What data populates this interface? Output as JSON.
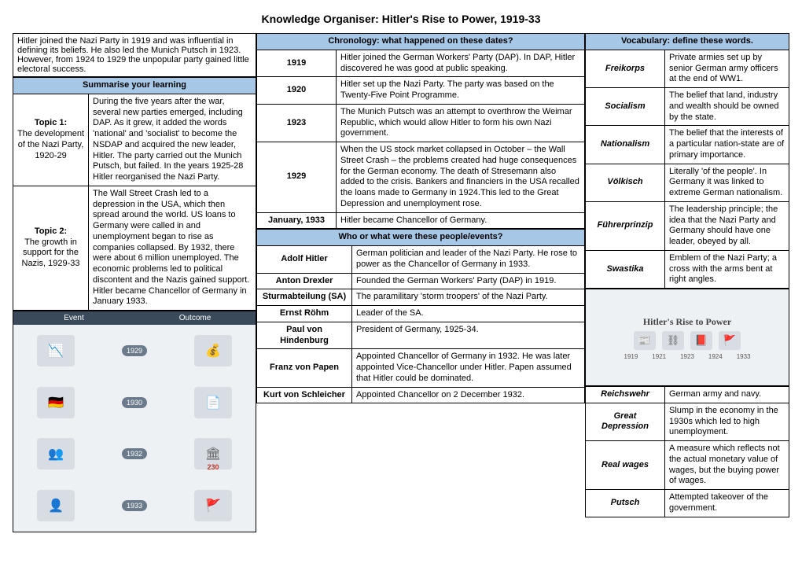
{
  "title": "Knowledge Organiser: Hitler's Rise to Power, 1919-33",
  "intro": "Hitler joined the Nazi Party in 1919 and was influential in defining its beliefs. He also led the Munich Putsch in 1923. However, from 1924 to 1929 the unpopular party gained little electoral success.",
  "summarise": {
    "header": "Summarise your learning",
    "topics": [
      {
        "label": "Topic 1:",
        "name": "The development of the Nazi Party, 1920-29",
        "text": "During the five years after the war, several new parties emerged, including DAP. As it grew, it added the words 'national' and 'socialist' to become the NSDAP and acquired the new leader, Hitler. The party carried out the Munich Putsch, but failed. In the years 1925-28 Hitler reorganised the Nazi Party."
      },
      {
        "label": "Topic 2:",
        "name": "The growth in support for the Nazis, 1929-33",
        "text": "The Wall Street Crash led to a depression in the USA, which then spread around the world. US loans to Germany were called in and unemployment began to rise as companies collapsed. By 1932, there were about 6 million unemployed. The economic problems led to political discontent and the Nazis gained support. Hitler became Chancellor of Germany in January 1933."
      }
    ]
  },
  "chronology": {
    "header": "Chronology: what happened on these dates?",
    "rows": [
      {
        "year": "1919",
        "text": "Hitler joined the German Workers' Party (DAP). In DAP, Hitler discovered he was good at public speaking."
      },
      {
        "year": "1920",
        "text": "Hitler set up the Nazi Party. The party was based on the Twenty-Five Point Programme."
      },
      {
        "year": "1923",
        "text": "The Munich Putsch was an attempt to overthrow the Weimar Republic, which would allow Hitler to form his own Nazi government."
      },
      {
        "year": "1929",
        "text": "When the US stock market collapsed in October – the Wall Street Crash – the problems created had huge consequences for the German economy. The death of Stresemann also added to the crisis. Bankers and financiers in the USA recalled the loans made to Germany in 1924.This led to the Great Depression and unemployment rose."
      },
      {
        "year": "January, 1933",
        "text": "Hitler became Chancellor of Germany."
      }
    ]
  },
  "people": {
    "header": "Who or what were these people/events?",
    "rows": [
      {
        "name": "Adolf Hitler",
        "text": "German politician and leader of the Nazi Party. He rose to power as the Chancellor of Germany in 1933."
      },
      {
        "name": "Anton Drexler",
        "text": "Founded the German Workers' Party (DAP) in 1919."
      },
      {
        "name": "Sturmabteilung (SA)",
        "text": "The paramilitary 'storm troopers' of the Nazi Party."
      },
      {
        "name": "Ernst Röhm",
        "text": "Leader of the SA."
      },
      {
        "name": "Paul von Hindenburg",
        "text": "President of Germany, 1925-34."
      },
      {
        "name": "Franz von Papen",
        "text": "Appointed Chancellor of Germany in 1932. He was later appointed Vice-Chancellor under Hitler. Papen assumed that Hitler could be dominated."
      },
      {
        "name": "Kurt von Schleicher",
        "text": "Appointed Chancellor on 2 December 1932."
      }
    ]
  },
  "vocab": {
    "header": "Vocabulary: define these words.",
    "rows": [
      {
        "term": "Freikorps",
        "def": "Private armies set up by senior German army officers at the end of WW1."
      },
      {
        "term": "Socialism",
        "def": "The belief that land, industry and wealth should be owned by the state."
      },
      {
        "term": "Nationalism",
        "def": "The belief that the interests of a particular nation-state are of primary importance."
      },
      {
        "term": "Völkisch",
        "def": "Literally 'of the people'. In Germany it was linked to extreme German nationalism."
      },
      {
        "term": "Führerprinzip",
        "def": "The leadership principle; the idea that the Nazi Party and Germany should have one leader, obeyed by all."
      },
      {
        "term": "Swastika",
        "def": "Emblem of the Nazi Party; a cross with the arms bent at right angles."
      },
      {
        "term": "Reichswehr",
        "def": "German army and navy."
      },
      {
        "term": "Great Depression",
        "def": "Slump in the economy in the 1930s which led to high unemployment."
      },
      {
        "term": "Real wages",
        "def": "A measure which reflects not the actual monetary value of wages, but the buying power of wages."
      },
      {
        "term": "Putsch",
        "def": "Attempted takeover of the government."
      }
    ]
  },
  "img_event_outcome": {
    "col1": "Event",
    "col2": "Outcome",
    "rows": [
      {
        "year": "1929",
        "left": "📉",
        "right": "💰"
      },
      {
        "year": "1930",
        "left": "🇩🇪",
        "right": "📄"
      },
      {
        "year": "1932",
        "left": "👥",
        "right": "🏛"
      },
      {
        "year": "1933",
        "left": "👤",
        "right": "🚩"
      }
    ],
    "note_230": "230"
  },
  "img_rise": {
    "title": "Hitler's Rise to Power",
    "icons": [
      "📰",
      "⛓",
      "📕",
      "🚩"
    ],
    "years": [
      "1919",
      "1921",
      "1923",
      "1924",
      "1933"
    ]
  },
  "colors": {
    "header_bg": "#a7c7e7",
    "border": "#000000",
    "page_bg": "#ffffff"
  }
}
